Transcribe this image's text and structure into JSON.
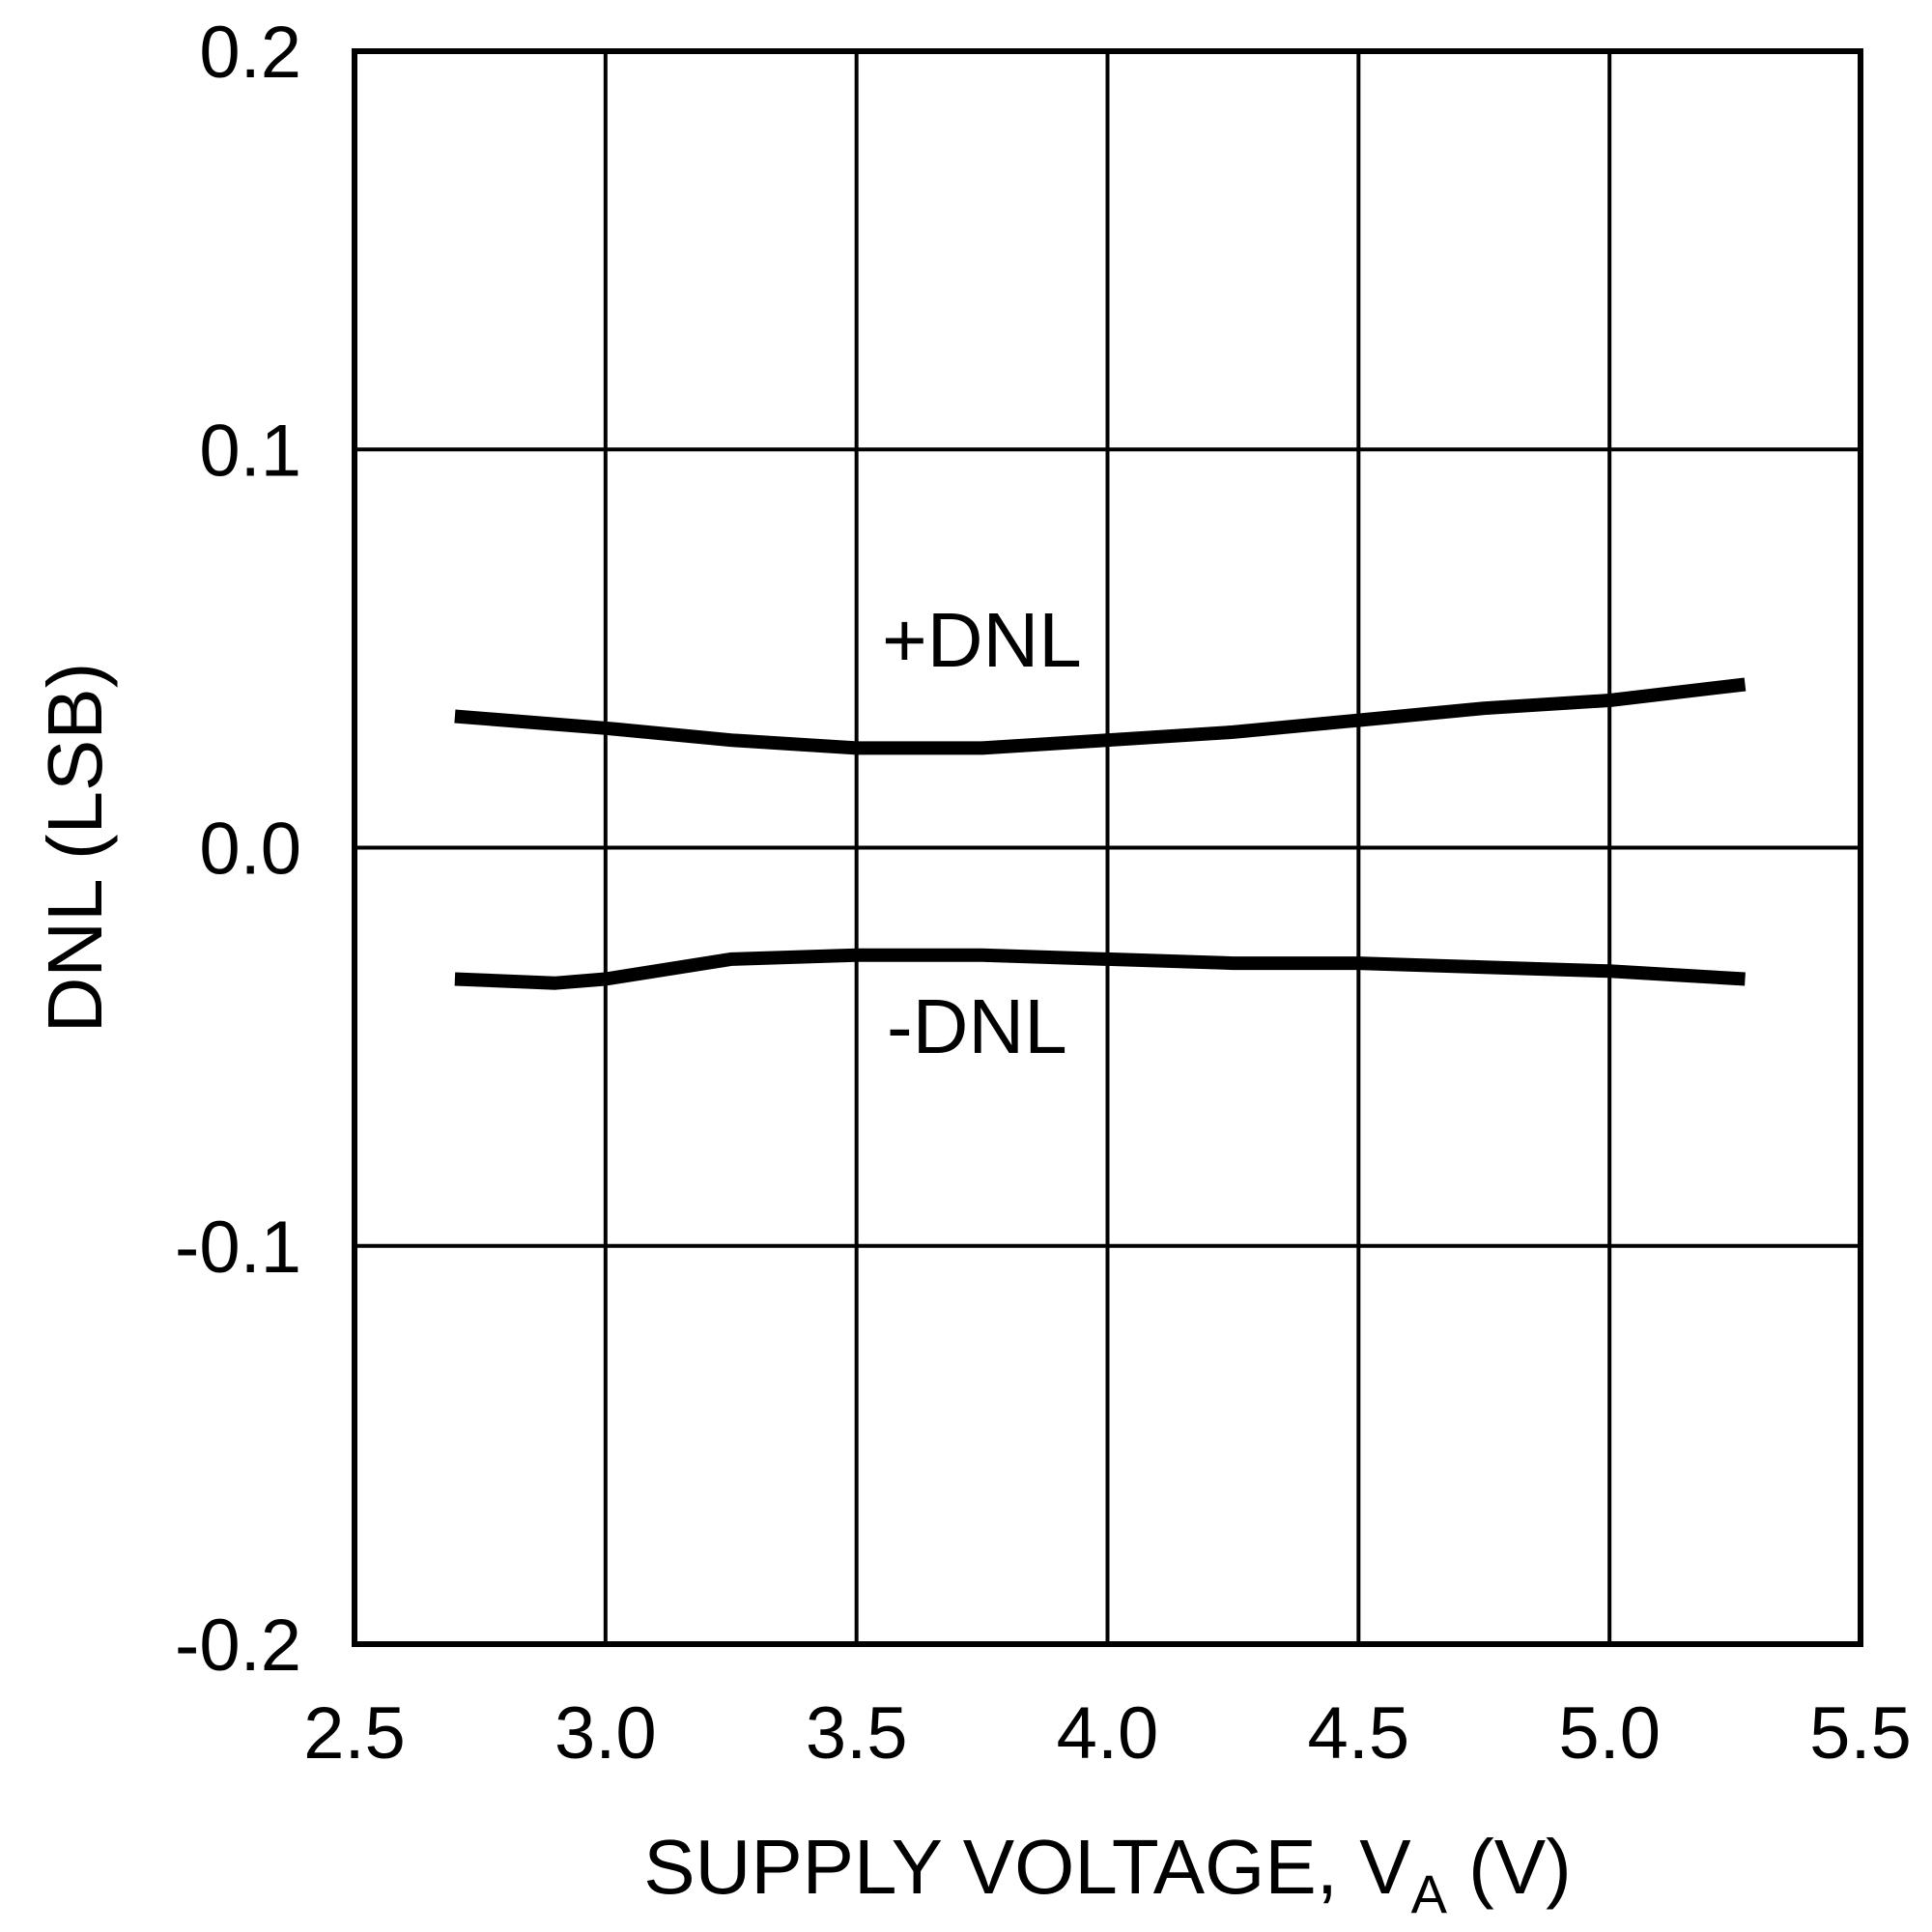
{
  "chart_data": {
    "type": "line",
    "xlabel_main": "SUPPLY VOLTAGE, V",
    "xlabel_sub": "A",
    "xlabel_tail": " (V)",
    "ylabel": "DNL (LSB)",
    "xlim": [
      2.5,
      5.5
    ],
    "ylim": [
      -0.2,
      0.2
    ],
    "x_ticks": [
      2.5,
      3.0,
      3.5,
      4.0,
      4.5,
      5.0,
      5.5
    ],
    "x_tick_labels": [
      "2.5",
      "3.0",
      "3.5",
      "4.0",
      "4.5",
      "5.0",
      "5.5"
    ],
    "y_ticks": [
      0.2,
      0.1,
      0.0,
      -0.1,
      -0.2
    ],
    "y_tick_labels": [
      "0.2",
      "0.1",
      "0.0",
      "-0.1",
      "-0.2"
    ],
    "grid": true,
    "series": [
      {
        "name": "+DNL",
        "x": [
          2.7,
          3.0,
          3.25,
          3.5,
          3.75,
          4.0,
          4.25,
          4.5,
          4.75,
          5.0,
          5.27
        ],
        "y": [
          0.033,
          0.03,
          0.027,
          0.025,
          0.025,
          0.027,
          0.029,
          0.032,
          0.035,
          0.037,
          0.041
        ]
      },
      {
        "name": "-DNL",
        "x": [
          2.7,
          2.9,
          3.0,
          3.25,
          3.5,
          3.75,
          4.0,
          4.25,
          4.5,
          4.75,
          5.0,
          5.27
        ],
        "y": [
          -0.033,
          -0.034,
          -0.033,
          -0.028,
          -0.027,
          -0.027,
          -0.028,
          -0.029,
          -0.029,
          -0.03,
          -0.031,
          -0.033
        ]
      }
    ]
  }
}
